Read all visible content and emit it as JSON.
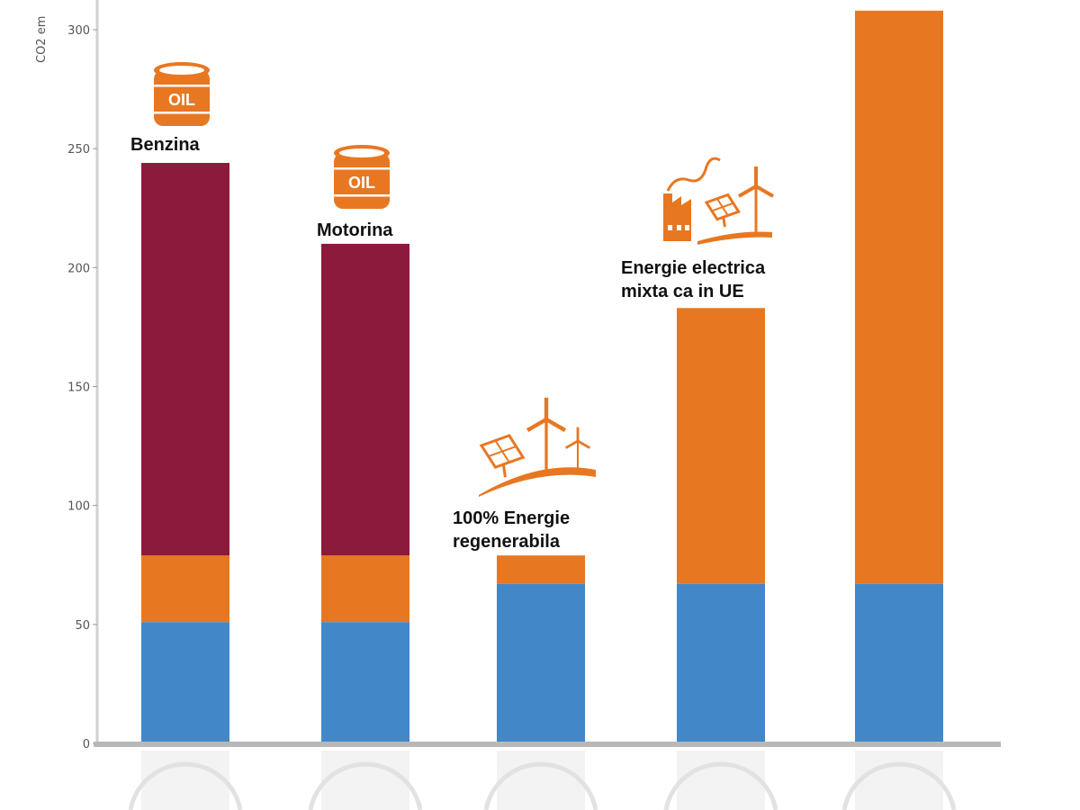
{
  "chart_data": {
    "type": "bar",
    "stacked": true,
    "ylabel": "CO2 em",
    "ylim": [
      0,
      310
    ],
    "yticks": [
      0,
      50,
      100,
      150,
      200,
      250,
      300
    ],
    "categories": [
      "Benzina",
      "Motorina",
      "100% Energie regenerabila",
      "Energie electrica mixta ca in UE",
      ""
    ],
    "series": [
      {
        "id": "blue",
        "color": "#4287c8",
        "values": [
          51,
          51,
          67,
          67,
          67
        ]
      },
      {
        "id": "orange",
        "color": "#e87722",
        "values": [
          28,
          28,
          12,
          116,
          241
        ]
      },
      {
        "id": "maroon",
        "color": "#8b1a3c",
        "values": [
          165,
          131,
          0,
          0,
          0
        ]
      }
    ]
  },
  "annotations": {
    "benzina": "Benzina",
    "motorina": "Motorina",
    "renewable_line1": "100% Energie",
    "renewable_line2": "regenerabila",
    "mix_line1": "Energie electrica",
    "mix_line2": "mixta ca in UE",
    "oil_icon_text": "OIL"
  },
  "icons": [
    "oil-barrel-icon",
    "oil-barrel-icon",
    "renewable-energy-icon",
    "factory-solar-wind-icon"
  ]
}
